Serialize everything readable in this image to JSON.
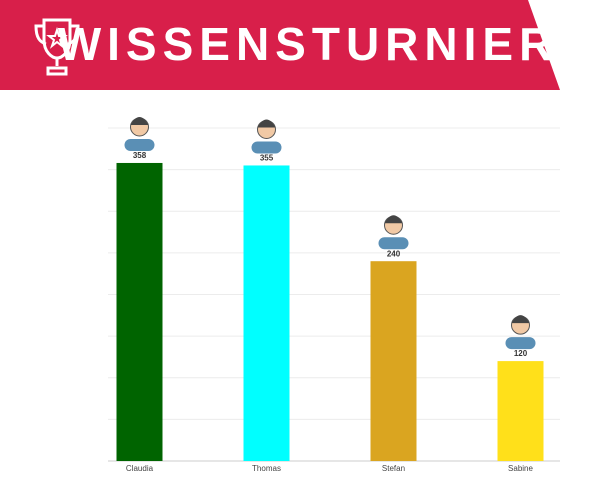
{
  "chart_data": {
    "type": "bar",
    "title": "WISSENSTURNIER",
    "categories": [
      "Claudia",
      "Thomas",
      "Stefan",
      "Sabine"
    ],
    "values": [
      358,
      355,
      240,
      120
    ],
    "colors": [
      "#006400",
      "#00ffff",
      "#daa520",
      "#ffe01a"
    ],
    "ylim": [
      0,
      400
    ],
    "yticks": [
      0,
      50,
      100,
      150,
      200,
      250,
      300,
      350,
      400
    ],
    "grid": true
  }
}
